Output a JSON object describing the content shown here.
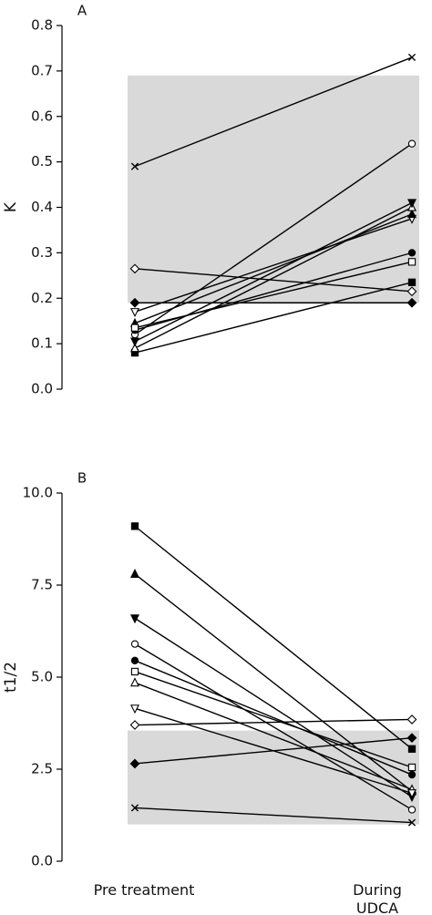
{
  "chart_data": [
    {
      "type": "line",
      "label": "A",
      "ylabel": "K",
      "ylim": [
        0,
        0.8
      ],
      "yticks": [
        {
          "value": 0,
          "label": "0.0"
        },
        0.1,
        0.2,
        0.3,
        0.4,
        0.5,
        0.6,
        0.7,
        0.8
      ],
      "band": [
        0.19,
        0.69
      ],
      "band_color": "#d9d9d9",
      "color": "#000000",
      "series": [
        {
          "marker": "x",
          "filled": false,
          "values": [
            0.49,
            0.73
          ]
        },
        {
          "marker": "diamond",
          "filled": false,
          "values": [
            0.265,
            0.215
          ]
        },
        {
          "marker": "diamond",
          "filled": true,
          "values": [
            0.19,
            0.19
          ]
        },
        {
          "marker": "triangle-down",
          "filled": false,
          "values": [
            0.17,
            0.375
          ]
        },
        {
          "marker": "triangle",
          "filled": true,
          "values": [
            0.145,
            0.385
          ]
        },
        {
          "marker": "circle",
          "filled": false,
          "values": [
            0.12,
            0.54
          ]
        },
        {
          "marker": "circle",
          "filled": true,
          "values": [
            0.13,
            0.3
          ]
        },
        {
          "marker": "square",
          "filled": false,
          "values": [
            0.135,
            0.28
          ]
        },
        {
          "marker": "square",
          "filled": true,
          "values": [
            0.08,
            0.235
          ]
        },
        {
          "marker": "triangle",
          "filled": false,
          "values": [
            0.09,
            0.4
          ]
        },
        {
          "marker": "triangle-down",
          "filled": true,
          "values": [
            0.105,
            0.41
          ]
        }
      ]
    },
    {
      "type": "line",
      "label": "B",
      "ylabel": "t1/2",
      "categories": [
        "Pre treatment",
        "During\nUDCA"
      ],
      "ylim": [
        0,
        10
      ],
      "yticks": [
        {
          "value": 0,
          "label": "0.0"
        },
        2.5,
        {
          "value": 5,
          "label": "5.0"
        },
        7.5,
        {
          "value": 10,
          "label": "10.0"
        }
      ],
      "band": [
        1.0,
        3.55
      ],
      "band_color": "#d9d9d9",
      "color": "#000000",
      "series": [
        {
          "marker": "square",
          "filled": true,
          "values": [
            9.1,
            3.05
          ]
        },
        {
          "marker": "triangle",
          "filled": true,
          "values": [
            7.8,
            1.9
          ]
        },
        {
          "marker": "triangle-down",
          "filled": true,
          "values": [
            6.6,
            1.75
          ]
        },
        {
          "marker": "circle",
          "filled": false,
          "values": [
            5.9,
            1.4
          ]
        },
        {
          "marker": "circle",
          "filled": true,
          "values": [
            5.45,
            2.35
          ]
        },
        {
          "marker": "square",
          "filled": false,
          "values": [
            5.15,
            2.55
          ]
        },
        {
          "marker": "triangle",
          "filled": false,
          "values": [
            4.85,
            1.95
          ]
        },
        {
          "marker": "triangle-down",
          "filled": false,
          "values": [
            4.15,
            1.85
          ]
        },
        {
          "marker": "diamond",
          "filled": false,
          "values": [
            3.7,
            3.85
          ]
        },
        {
          "marker": "diamond",
          "filled": true,
          "values": [
            2.65,
            3.35
          ]
        },
        {
          "marker": "x",
          "filled": false,
          "values": [
            1.45,
            1.05
          ]
        }
      ]
    }
  ]
}
